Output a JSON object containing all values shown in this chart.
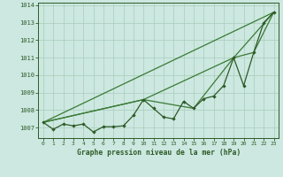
{
  "background_color": "#cce8e0",
  "grid_color": "#aaccbb",
  "line_color_main": "#2d5a27",
  "line_color_smooth": "#3a7a35",
  "title": "Graphe pression niveau de la mer (hPa)",
  "ylim": [
    1006.4,
    1014.15
  ],
  "xlim": [
    -0.5,
    23.5
  ],
  "yticks": [
    1007,
    1008,
    1009,
    1010,
    1011,
    1012,
    1013,
    1014
  ],
  "xticks": [
    0,
    1,
    2,
    3,
    4,
    5,
    6,
    7,
    8,
    9,
    10,
    11,
    12,
    13,
    14,
    15,
    16,
    17,
    18,
    19,
    20,
    21,
    22,
    23
  ],
  "pressure_data": [
    1007.3,
    1006.9,
    1007.2,
    1007.1,
    1007.2,
    1006.75,
    1007.05,
    1007.05,
    1007.1,
    1007.7,
    1008.6,
    1008.1,
    1007.6,
    1007.5,
    1008.5,
    1008.1,
    1008.65,
    1008.8,
    1009.4,
    1011.0,
    1009.4,
    1011.3,
    1013.0,
    1013.6
  ],
  "line1_x": [
    0,
    23
  ],
  "line1_y": [
    1007.3,
    1013.6
  ],
  "line2_x": [
    0,
    23
  ],
  "line2_y": [
    1007.3,
    1013.6
  ],
  "line3_x": [
    0,
    10,
    19,
    23
  ],
  "line3_y": [
    1007.3,
    1008.6,
    1011.0,
    1013.6
  ],
  "line4_x": [
    0,
    10,
    15,
    19,
    21,
    23
  ],
  "line4_y": [
    1007.3,
    1008.6,
    1008.1,
    1011.0,
    1011.3,
    1013.6
  ]
}
